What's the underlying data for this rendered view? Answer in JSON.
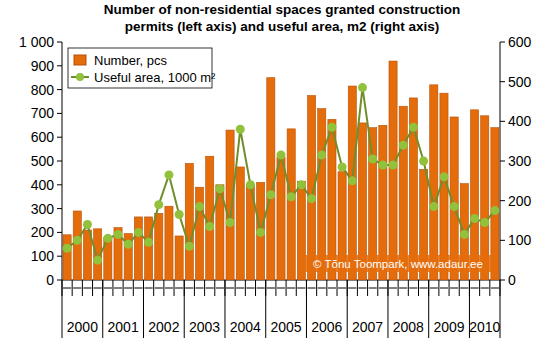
{
  "chart_data": {
    "type": "bar",
    "title": "Number of non-residential spaces granted construction\npermits (left axis) and useful area, m2 (right axis)",
    "annotation": "© Tõnu Toompark, www.adaur.ee",
    "categories": [
      "2000",
      null,
      null,
      null,
      "2001",
      null,
      null,
      null,
      "2002",
      null,
      null,
      null,
      "2003",
      null,
      null,
      null,
      "2004",
      null,
      null,
      null,
      "2005",
      null,
      null,
      null,
      "2006",
      null,
      null,
      null,
      "2007",
      null,
      null,
      null,
      "2008",
      null,
      null,
      null,
      "2009",
      null,
      null,
      null,
      "2010",
      null,
      null
    ],
    "series": [
      {
        "name": "Number, pcs",
        "type": "bar",
        "color": "#e46c0a",
        "values": [
          190,
          290,
          210,
          215,
          180,
          220,
          195,
          265,
          265,
          280,
          310,
          185,
          490,
          390,
          520,
          400,
          630,
          475,
          400,
          410,
          850,
          515,
          635,
          415,
          775,
          720,
          675,
          455,
          815,
          660,
          640,
          650,
          920,
          730,
          765,
          465,
          820,
          785,
          685,
          405,
          715,
          690,
          640
        ]
      },
      {
        "name": "Useful area, 1000 m²",
        "type": "line",
        "axis": "y2",
        "color": "#92c13c",
        "marker": "circle",
        "line_style": "solid",
        "values": [
          80,
          100,
          140,
          50,
          105,
          115,
          90,
          120,
          95,
          190,
          265,
          165,
          85,
          185,
          135,
          230,
          145,
          380,
          240,
          120,
          215,
          315,
          210,
          240,
          205,
          315,
          385,
          285,
          250,
          485,
          305,
          290,
          290,
          340,
          385,
          300,
          185,
          260,
          185,
          115,
          155,
          145,
          175
        ]
      }
    ],
    "ylim": [
      0,
      1000
    ],
    "yticks": [
      0,
      100,
      200,
      300,
      400,
      500,
      600,
      700,
      800,
      900,
      {
        "value": 1000,
        "label": "1 000"
      }
    ],
    "y2lim": [
      0,
      600
    ],
    "y2ticks": [
      0,
      100,
      200,
      300,
      400,
      500,
      600
    ],
    "grid": false,
    "legend": "top-left"
  }
}
